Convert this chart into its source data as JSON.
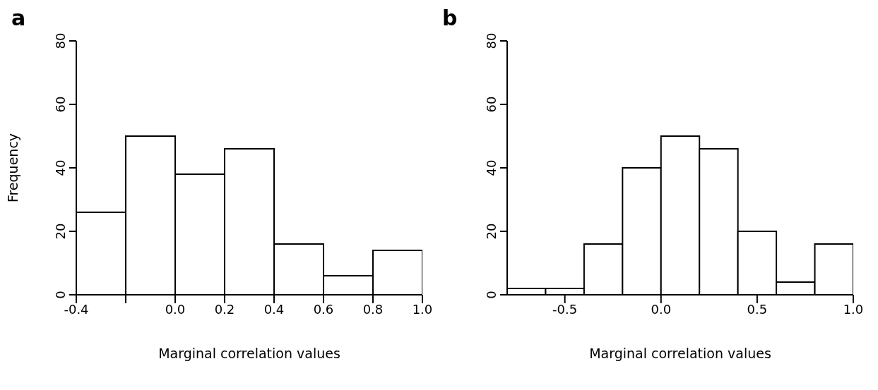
{
  "chart_data": [
    {
      "type": "histogram",
      "title": "a",
      "xlabel": "Marginal correlation values",
      "ylabel": "Frequency",
      "bins": [
        -0.4,
        -0.2,
        0,
        0.2,
        0.4,
        0.6,
        0.8,
        1.0
      ],
      "values": [
        26,
        50,
        38,
        46,
        16,
        6,
        14
      ],
      "color": "#ffffff",
      "xlim": [
        -0.4,
        1.0
      ],
      "xticks": [
        -0.4,
        {
          "value": -0.2,
          "label": null
        },
        {
          "value": 0,
          "label": "0.0"
        },
        0.2,
        0.4,
        0.6,
        0.8,
        {
          "value": 1,
          "label": "1.0"
        }
      ],
      "ylim": [
        0,
        80
      ],
      "yticks": [
        0,
        20,
        40,
        60,
        80
      ],
      "grid": false
    },
    {
      "type": "histogram",
      "title": "b",
      "xlabel": "Marginal correlation values",
      "bins": [
        -0.8,
        -0.6,
        -0.4,
        -0.2,
        0,
        0.2,
        0.4,
        0.6,
        0.8,
        1.0
      ],
      "values": [
        2,
        2,
        16,
        40,
        50,
        46,
        20,
        4,
        16
      ],
      "color": "#ffffff",
      "xlim": [
        -0.8,
        1.0
      ],
      "xticks": [
        -0.5,
        {
          "value": 0,
          "label": "0.0"
        },
        0.5,
        {
          "value": 1,
          "label": "1.0"
        }
      ],
      "ylim": [
        0,
        80
      ],
      "yticks": [
        0,
        20,
        40,
        60,
        80
      ],
      "grid": false
    }
  ]
}
